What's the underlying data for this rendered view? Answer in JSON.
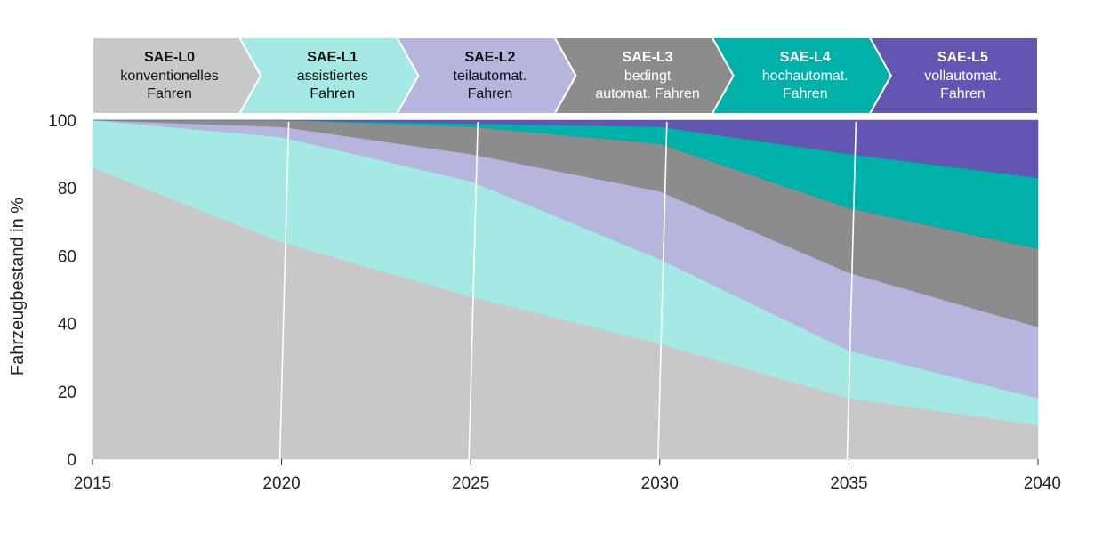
{
  "chart_data": {
    "type": "area",
    "stacked": true,
    "x": [
      2015,
      2020,
      2025,
      2030,
      2035,
      2040
    ],
    "xlim": [
      2015,
      2040
    ],
    "ylim": [
      0,
      100
    ],
    "xticks": [
      "2015",
      "2020",
      "2025",
      "2030",
      "2035",
      "2040"
    ],
    "yticks": [
      "0",
      "20",
      "40",
      "60",
      "80",
      "100"
    ],
    "xlabel": "",
    "ylabel": "Fahrzeugbestand in %",
    "title": "",
    "grid": false,
    "series": [
      {
        "name": "SAE-L0",
        "color": "#c8c8c8",
        "values": [
          86,
          64,
          48,
          34,
          18,
          10
        ]
      },
      {
        "name": "SAE-L1",
        "color": "#a4e9e3",
        "values": [
          14,
          31,
          34,
          25,
          14,
          8
        ]
      },
      {
        "name": "SAE-L2",
        "color": "#b5b5de",
        "values": [
          0,
          3,
          8,
          20,
          23,
          21
        ]
      },
      {
        "name": "SAE-L3",
        "color": "#8c8c8c",
        "values": [
          0,
          2,
          8,
          14,
          19,
          23
        ]
      },
      {
        "name": "SAE-L4",
        "color": "#00b1a9",
        "values": [
          0,
          0,
          1,
          5,
          16,
          21
        ]
      },
      {
        "name": "SAE-L5",
        "color": "#6256b2",
        "values": [
          0,
          0,
          1,
          2,
          10,
          17
        ]
      }
    ]
  },
  "levels": [
    {
      "title": "SAE-L0",
      "lines": [
        "konventionelles",
        "Fahren"
      ],
      "bg": "#c8c8c8",
      "fg": "#111111"
    },
    {
      "title": "SAE-L1",
      "lines": [
        "assistiertes",
        "Fahren"
      ],
      "bg": "#a4e9e3",
      "fg": "#111111"
    },
    {
      "title": "SAE-L2",
      "lines": [
        "teilautomat.",
        "Fahren"
      ],
      "bg": "#b5b5de",
      "fg": "#111111"
    },
    {
      "title": "SAE-L3",
      "lines": [
        "bedingt",
        "automat. Fahren"
      ],
      "bg": "#8c8c8c",
      "fg": "#ffffff"
    },
    {
      "title": "SAE-L4",
      "lines": [
        "hochautomat.",
        "Fahren"
      ],
      "bg": "#00b1a9",
      "fg": "#ffffff"
    },
    {
      "title": "SAE-L5",
      "lines": [
        "vollautomat.",
        "Fahren"
      ],
      "bg": "#6256b2",
      "fg": "#ffffff"
    }
  ]
}
